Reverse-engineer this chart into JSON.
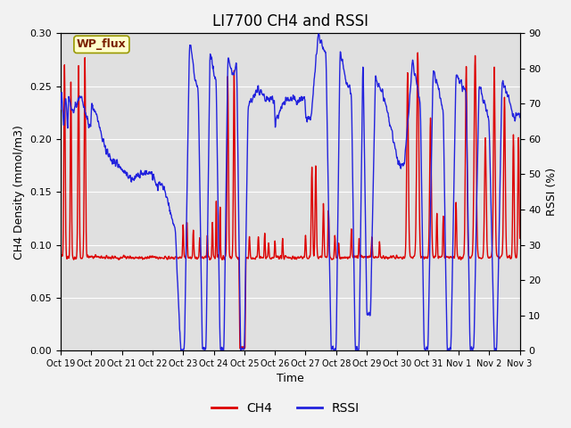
{
  "title": "LI7700 CH4 and RSSI",
  "xlabel": "Time",
  "ylabel_left": "CH4 Density (mmol/m3)",
  "ylabel_right": "RSSI (%)",
  "xlim": [
    0,
    360
  ],
  "ylim_left": [
    0.0,
    0.3
  ],
  "ylim_right": [
    0,
    90
  ],
  "ch4_color": "#dd0000",
  "rssi_color": "#2222dd",
  "bg_color": "#e0e0e0",
  "fig_bg_color": "#f2f2f2",
  "legend_label_ch4": "CH4",
  "legend_label_rssi": "RSSI",
  "annotation_text": "WP_flux",
  "annotation_bg": "#ffffcc",
  "annotation_border": "#999900",
  "x_tick_labels": [
    "Oct 19",
    "Oct 20",
    "Oct 21",
    "Oct 22",
    "Oct 23",
    "Oct 24",
    "Oct 25",
    "Oct 26",
    "Oct 27",
    "Oct 28",
    "Oct 29",
    "Oct 30",
    "Oct 31",
    "Nov 1",
    "Nov 2",
    "Nov 3"
  ],
  "x_tick_positions": [
    0,
    24,
    48,
    72,
    96,
    120,
    144,
    168,
    192,
    216,
    240,
    264,
    288,
    312,
    336,
    360
  ],
  "grid_color": "#ffffff",
  "title_fontsize": 12,
  "linewidth": 1.0
}
